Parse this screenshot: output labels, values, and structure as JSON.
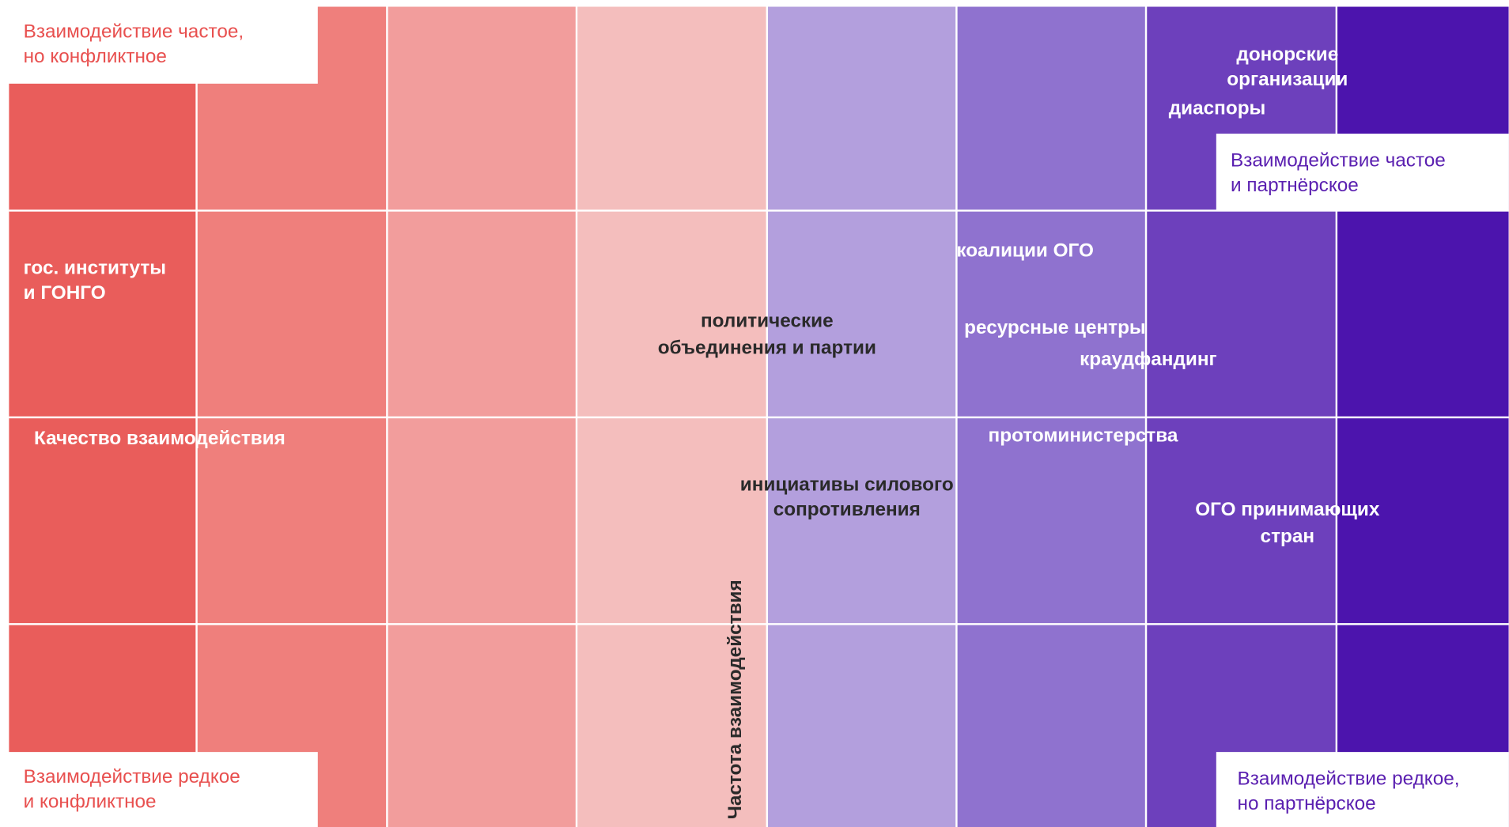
{
  "corners": {
    "top_left": [
      "Взаимодействие частое,",
      "но конфликтное"
    ],
    "bottom_left": [
      "Взаимодействие редкое",
      "и конфликтное"
    ],
    "top_right": [
      "Взаимодействие частое",
      "и партнёрское"
    ],
    "bottom_right": [
      "Взаимодействие редкое,",
      "но партнёрское"
    ]
  },
  "axes": {
    "horizontal": "Качество взаимодействия",
    "vertical": "Частота взаимодействия"
  },
  "items": {
    "gos": [
      "гос. институты",
      "и ГОНГО"
    ],
    "donors": [
      "донорские",
      "организации"
    ],
    "diasporas": [
      "диаспоры"
    ],
    "coalitions": [
      "коалиции ОГО"
    ],
    "parties": [
      "политические",
      "объединения и партии"
    ],
    "resource_centers": [
      "ресурсные центры"
    ],
    "crowdfunding": [
      "краудфандинг"
    ],
    "protoministries": [
      "протоминистерства"
    ],
    "resistance": [
      "инициативы силового",
      "сопротивления"
    ],
    "host_cso": [
      "ОГО принимающих",
      "стран"
    ]
  }
}
